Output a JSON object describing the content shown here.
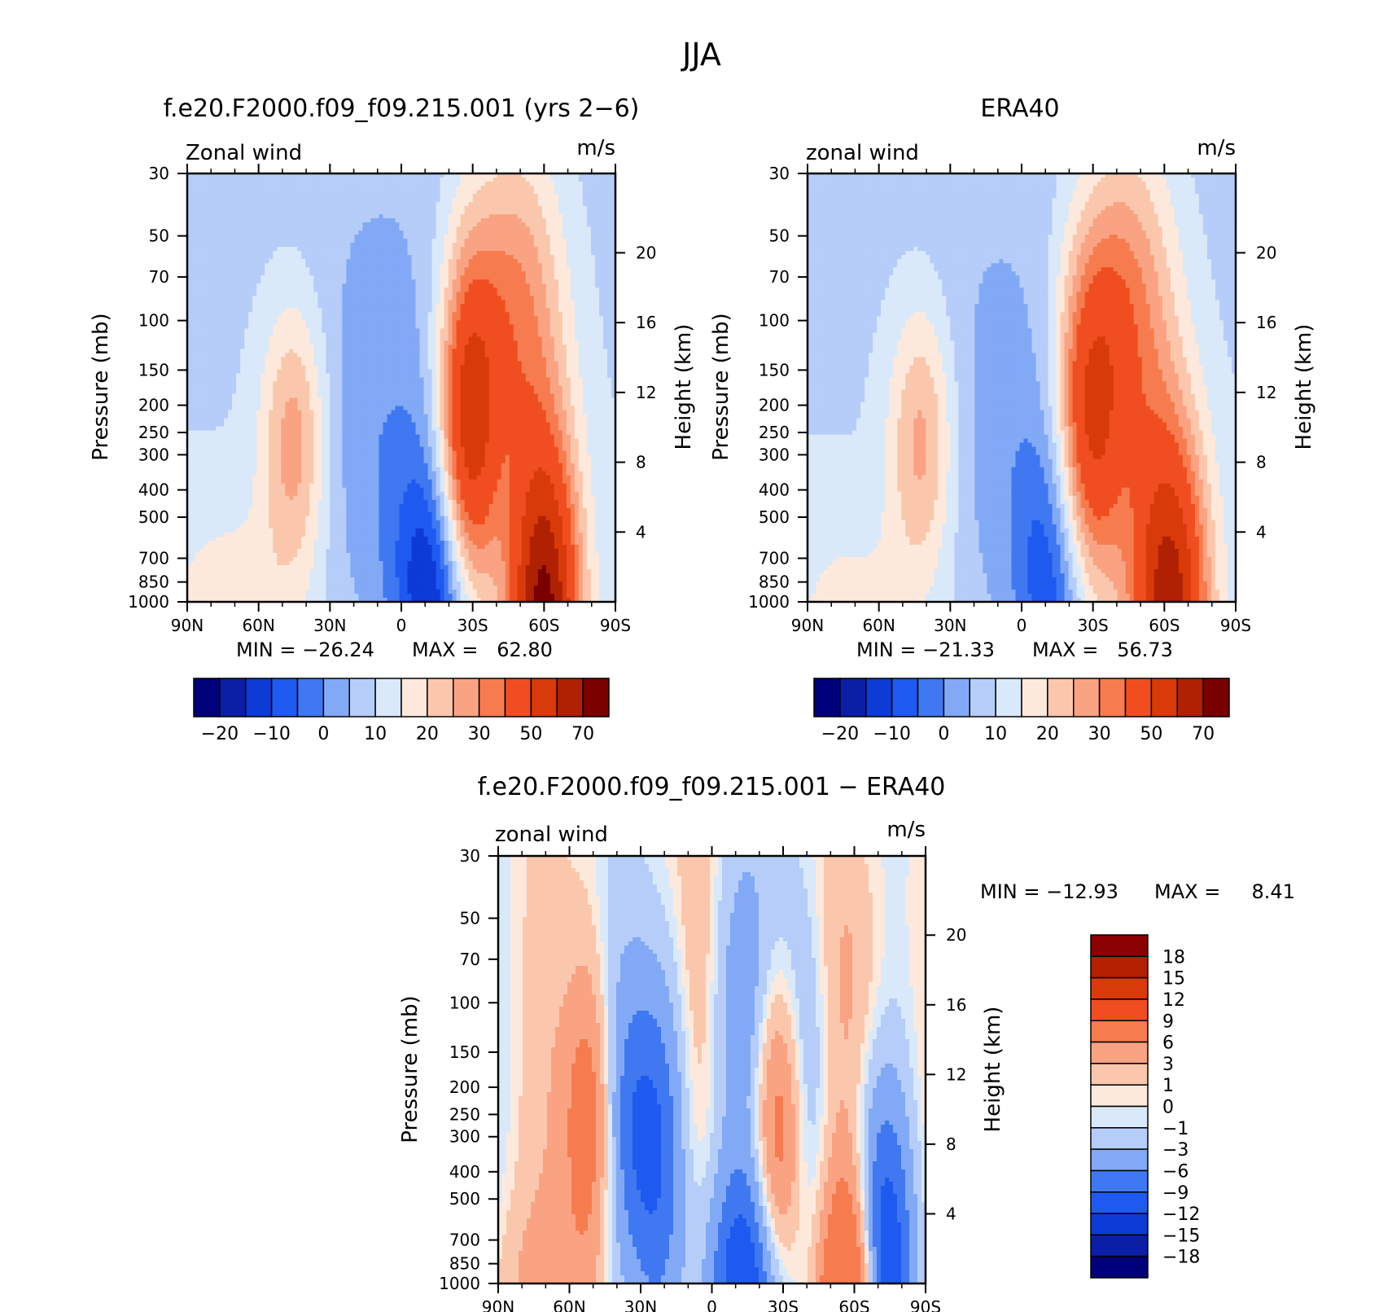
{
  "figure": {
    "title": "JJA"
  },
  "chart_data": [
    {
      "type": "heatmap",
      "title": "f.e20.F2000.f09_f09.215.001 (yrs 2−6)",
      "variable_label": "Zonal wind",
      "units_label": "m/s",
      "ylabel": "Pressure (mb)",
      "y2label": "Height (km)",
      "x_tick_labels": [
        "90N",
        "60N",
        "30N",
        "0",
        "30S",
        "60S",
        "90S"
      ],
      "x_range": [
        90,
        -90
      ],
      "y_tick_labels": [
        "30",
        "50",
        "70",
        "100",
        "150",
        "200",
        "250",
        "300",
        "400",
        "500",
        "700",
        "850",
        "1000"
      ],
      "y_range_mb": [
        1000,
        30
      ],
      "y_scale": "log",
      "y2_tick_labels": [
        "4",
        "8",
        "12",
        "16",
        "20"
      ],
      "min_text": "MIN = −26.24",
      "max_text": "MAX =   62.80",
      "colorbar_orientation": "horizontal",
      "colorbar_labels": [
        "−20",
        "−10",
        "0",
        "10",
        "20",
        "30",
        "50",
        "70"
      ],
      "colorbar_colors": [
        "#00007a",
        "#0a1fa6",
        "#0d3bd6",
        "#1e5af0",
        "#3f78f0",
        "#82a9f5",
        "#b5cdf8",
        "#d9e9f9",
        "#fde9dc",
        "#fbc7ac",
        "#f9a383",
        "#f67c4f",
        "#f04e20",
        "#d83a0a",
        "#b02103",
        "#7a0000"
      ],
      "features": {
        "easterly_min_lat": -20,
        "easterly_min_value": -26.24,
        "westerly_max_lat": -60,
        "westerly_max_value": 62.8,
        "nh_jet_lat": 45,
        "nh_jet_value": 21
      }
    },
    {
      "type": "heatmap",
      "title": "ERA40",
      "variable_label": "zonal wind",
      "units_label": "m/s",
      "ylabel": "Pressure (mb)",
      "y2label": "Height (km)",
      "x_tick_labels": [
        "90N",
        "60N",
        "30N",
        "0",
        "30S",
        "60S",
        "90S"
      ],
      "x_range": [
        90,
        -90
      ],
      "y_tick_labels": [
        "30",
        "50",
        "70",
        "100",
        "150",
        "200",
        "250",
        "300",
        "400",
        "500",
        "700",
        "850",
        "1000"
      ],
      "y_range_mb": [
        1000,
        30
      ],
      "y_scale": "log",
      "y2_tick_labels": [
        "4",
        "8",
        "12",
        "16",
        "20"
      ],
      "min_text": "MIN = −21.33",
      "max_text": "MAX =   56.73",
      "colorbar_orientation": "horizontal",
      "colorbar_labels": [
        "−20",
        "−10",
        "0",
        "10",
        "20",
        "30",
        "50",
        "70"
      ],
      "colorbar_colors": [
        "#00007a",
        "#0a1fa6",
        "#0d3bd6",
        "#1e5af0",
        "#3f78f0",
        "#82a9f5",
        "#b5cdf8",
        "#d9e9f9",
        "#fde9dc",
        "#fbc7ac",
        "#f9a383",
        "#f67c4f",
        "#f04e20",
        "#d83a0a",
        "#b02103",
        "#7a0000"
      ],
      "features": {
        "easterly_min_lat": -15,
        "easterly_min_value": -21.33,
        "westerly_max_lat": -60,
        "westerly_max_value": 56.73,
        "nh_jet_lat": 45,
        "nh_jet_value": 21
      }
    },
    {
      "type": "heatmap",
      "title": "f.e20.F2000.f09_f09.215.001 − ERA40",
      "variable_label": "zonal wind",
      "units_label": "m/s",
      "ylabel": "Pressure (mb)",
      "y2label": "Height (km)",
      "x_tick_labels": [
        "90N",
        "60N",
        "30N",
        "0",
        "30S",
        "60S",
        "90S"
      ],
      "x_range": [
        90,
        -90
      ],
      "y_tick_labels": [
        "30",
        "50",
        "70",
        "100",
        "150",
        "200",
        "250",
        "300",
        "400",
        "500",
        "700",
        "850",
        "1000"
      ],
      "y_range_mb": [
        1000,
        30
      ],
      "y_scale": "log",
      "y2_tick_labels": [
        "4",
        "8",
        "12",
        "16",
        "20"
      ],
      "min_text": "MIN = −12.93",
      "max_text": "MAX =     8.41",
      "colorbar_orientation": "vertical",
      "colorbar_labels": [
        "18",
        "15",
        "12",
        "9",
        "6",
        "3",
        "1",
        "0",
        "−1",
        "−3",
        "−6",
        "−9",
        "−12",
        "−15",
        "−18"
      ],
      "colorbar_colors": [
        "#8b0000",
        "#b52000",
        "#d83a0a",
        "#f04e20",
        "#f67c4f",
        "#f9a383",
        "#fbc7ac",
        "#fde9dc",
        "#d9e9f9",
        "#b5cdf8",
        "#82a9f5",
        "#3f78f0",
        "#1e5af0",
        "#0d3bd6",
        "#0a1fa6",
        "#00007a"
      ]
    }
  ]
}
